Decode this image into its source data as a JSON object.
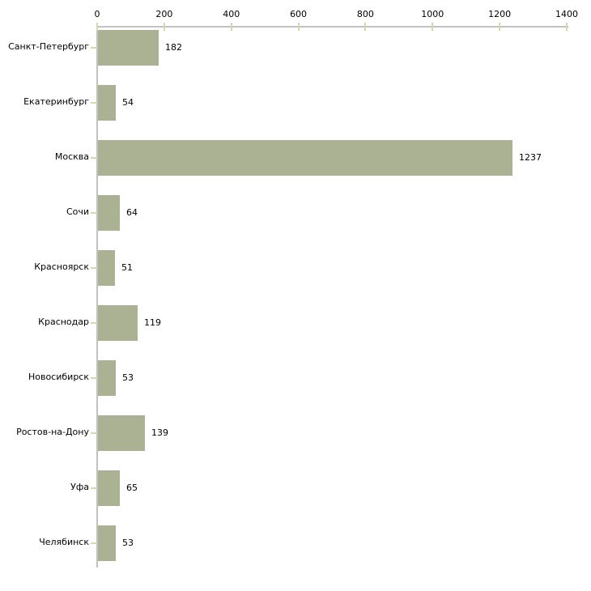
{
  "chart_data": {
    "type": "bar",
    "orientation": "horizontal",
    "title": "",
    "xlabel": "",
    "ylabel": "",
    "categories": [
      "Санкт-Петербург",
      "Екатеринбург",
      "Москва",
      "Сочи",
      "Красноярск",
      "Краснодар",
      "Новосибирск",
      "Ростов-на-Дону",
      "Уфа",
      "Челябинск"
    ],
    "values": [
      182,
      54,
      1237,
      64,
      51,
      119,
      53,
      139,
      65,
      53
    ],
    "value_labels": [
      "182",
      "54",
      "1237",
      "64",
      "51",
      "119",
      "53",
      "139",
      "65",
      "53"
    ],
    "x_ticks": [
      0,
      200,
      400,
      600,
      800,
      1000,
      1200,
      1400
    ],
    "xlim": [
      0,
      1400
    ],
    "axis_position": "top",
    "grid": false,
    "legend": false,
    "bar_color": "#aab293",
    "axis_line_color": "#c2c2c2",
    "tick_mark_color": "#d8d8b0",
    "text_color": "#000000",
    "background_color": "#ffffff"
  }
}
